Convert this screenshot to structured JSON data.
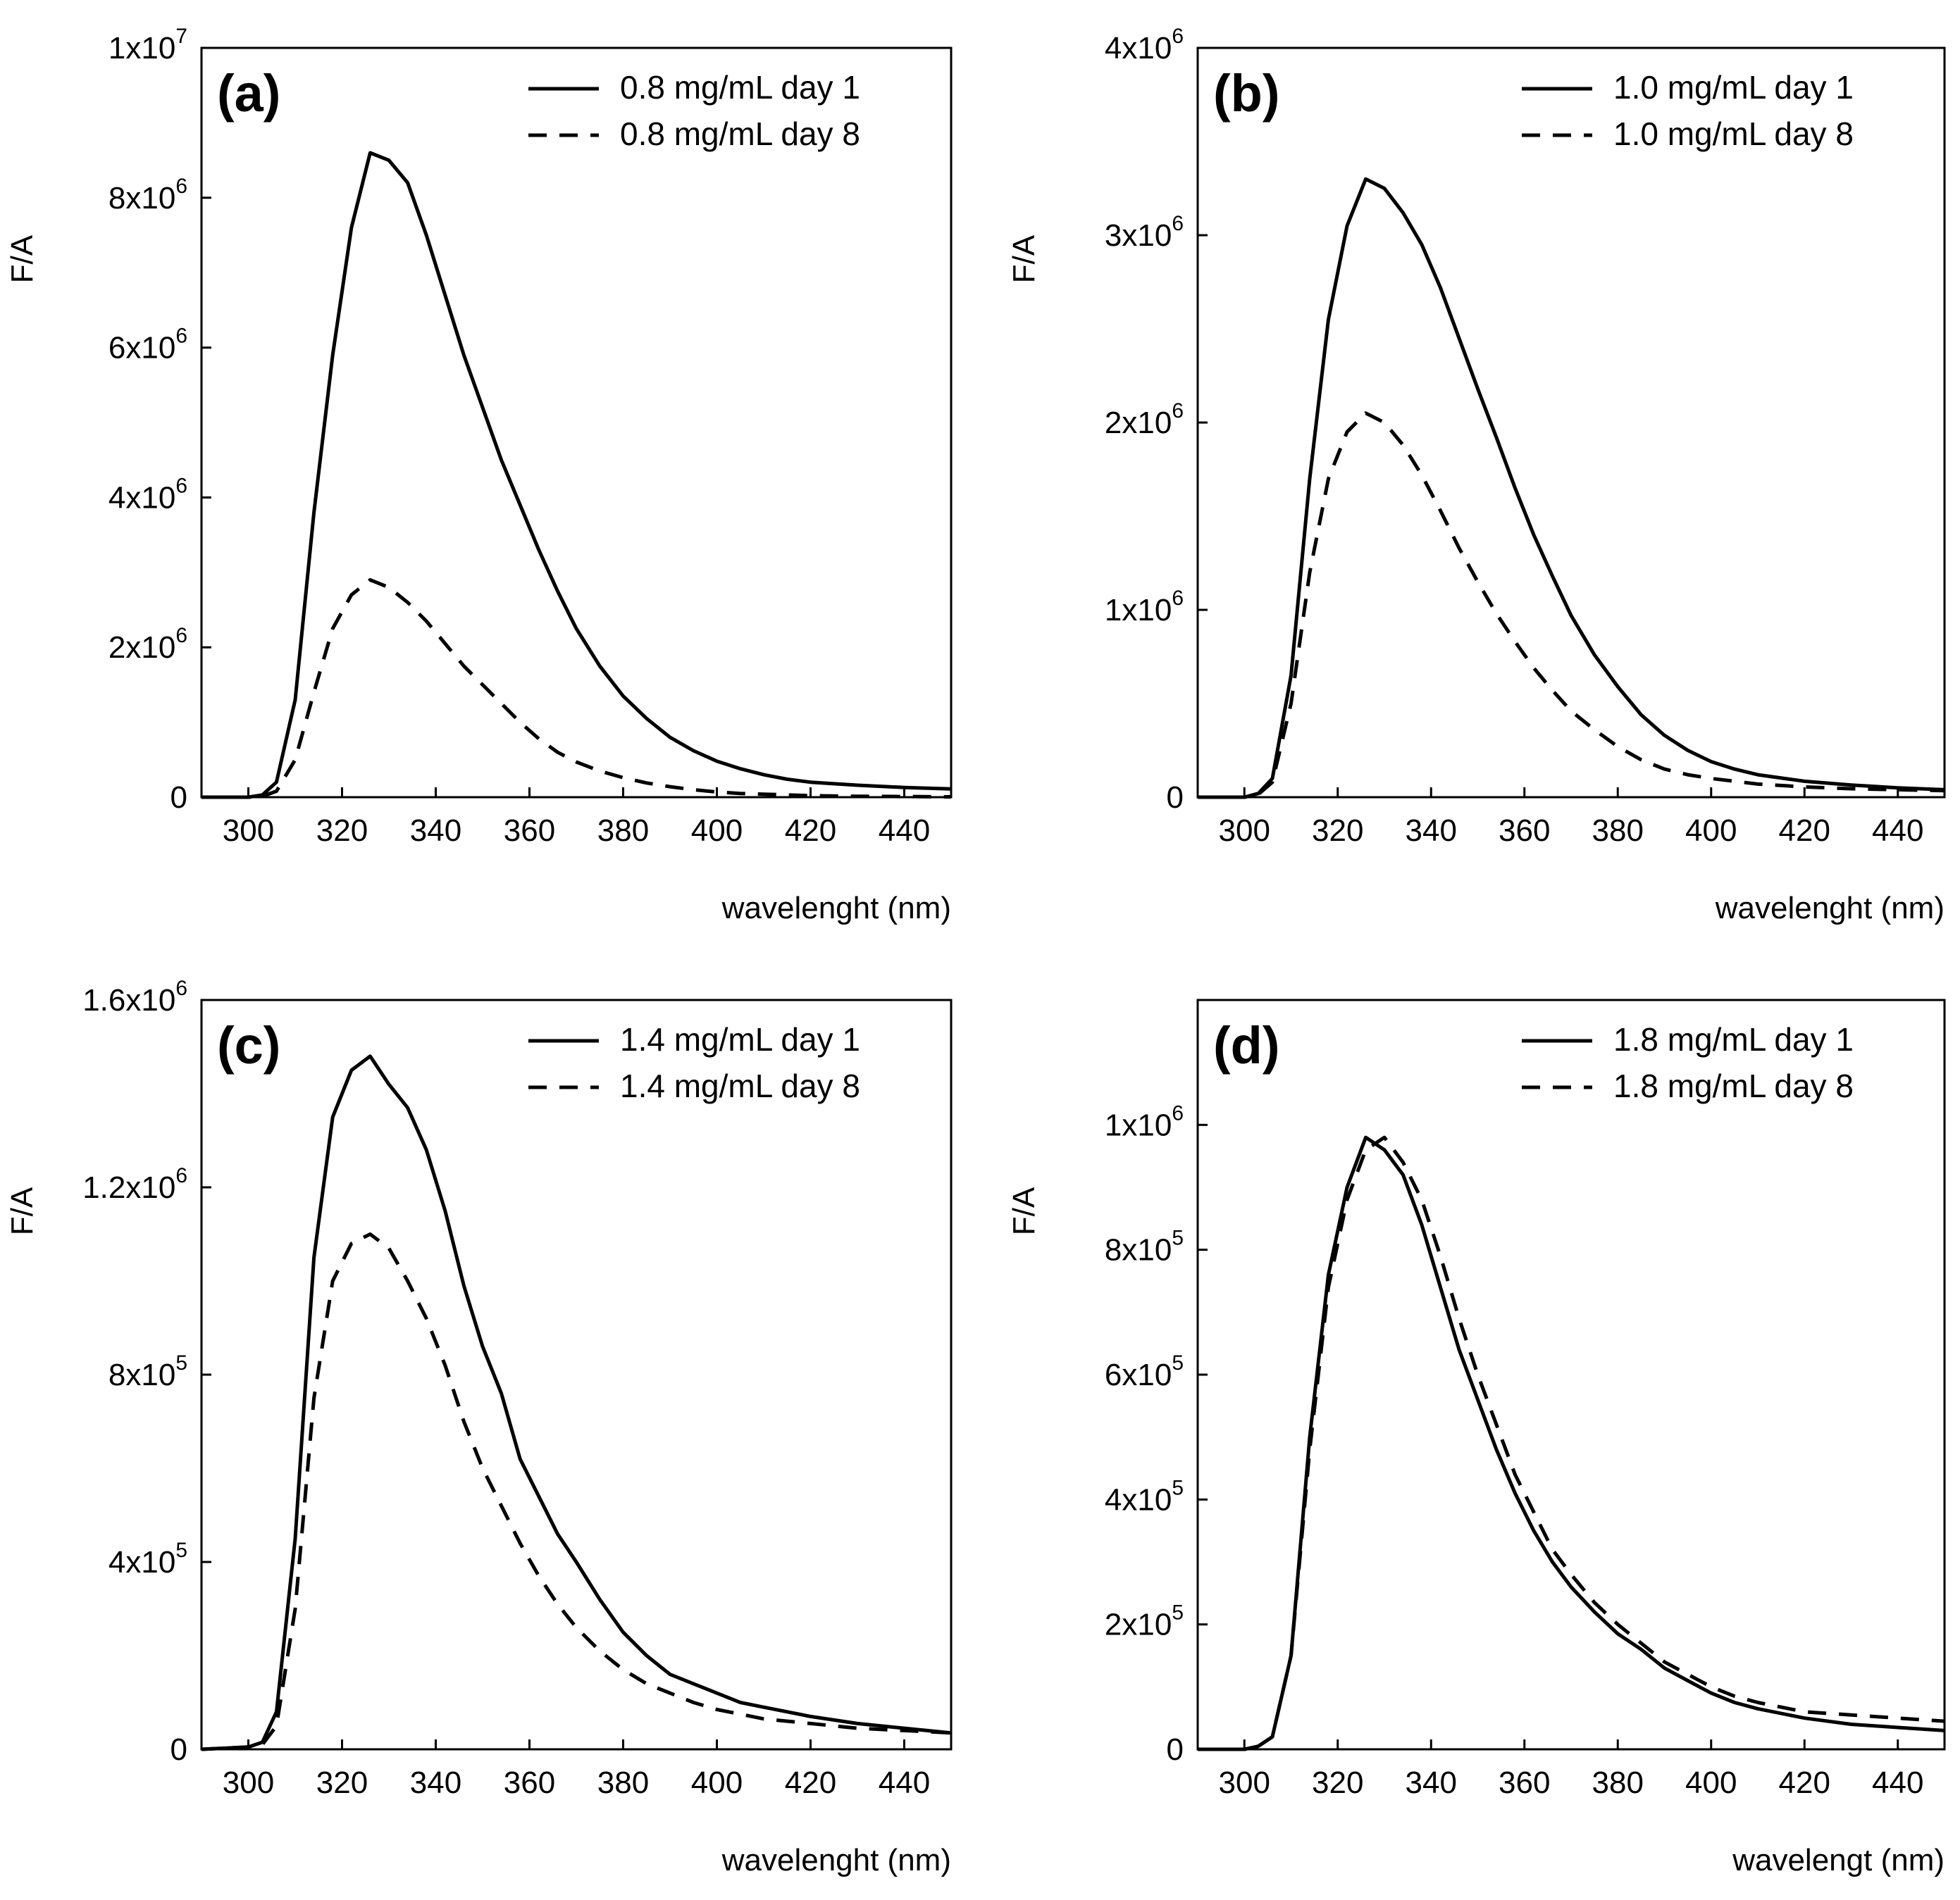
{
  "figure": {
    "title": ""
  },
  "chart_data": [
    {
      "type": "line",
      "panel_label": "(a)",
      "xlabel": "wavelenght (nm)",
      "ylabel": "F/A",
      "xlim": [
        290,
        450
      ],
      "ylim": [
        0,
        10000000
      ],
      "xticks": [
        300,
        320,
        340,
        360,
        380,
        400,
        420,
        440
      ],
      "xtick_labels": [
        "300",
        "320",
        "340",
        "360",
        "380",
        "400",
        "420",
        "440"
      ],
      "yticks": [
        0,
        2000000,
        4000000,
        6000000,
        8000000,
        10000000
      ],
      "ytick_labels": [
        {
          "mantissa": "0",
          "exponent": ""
        },
        {
          "mantissa": "2x10",
          "exponent": "6"
        },
        {
          "mantissa": "4x10",
          "exponent": "6"
        },
        {
          "mantissa": "6x10",
          "exponent": "6"
        },
        {
          "mantissa": "8x10",
          "exponent": "6"
        },
        {
          "mantissa": "1x10",
          "exponent": "7"
        }
      ],
      "legend_position": "top-right",
      "series": [
        {
          "name": "0.8 mg/mL day 1",
          "style": "solid",
          "x": [
            290,
            300,
            303,
            306,
            310,
            314,
            318,
            322,
            326,
            330,
            334,
            338,
            342,
            346,
            350,
            354,
            358,
            362,
            366,
            370,
            375,
            380,
            385,
            390,
            395,
            400,
            405,
            410,
            415,
            420,
            430,
            440,
            450
          ],
          "y": [
            0,
            0,
            30000,
            200000,
            1300000,
            3800000,
            5900000,
            7600000,
            8600000,
            8500000,
            8200000,
            7500000,
            6700000,
            5900000,
            5200000,
            4500000,
            3900000,
            3300000,
            2750000,
            2250000,
            1750000,
            1350000,
            1050000,
            800000,
            620000,
            480000,
            380000,
            300000,
            240000,
            200000,
            160000,
            130000,
            110000
          ]
        },
        {
          "name": "0.8 mg/mL day 8",
          "style": "dashed",
          "x": [
            290,
            300,
            303,
            306,
            310,
            314,
            318,
            322,
            326,
            330,
            334,
            338,
            342,
            346,
            350,
            354,
            358,
            362,
            366,
            370,
            375,
            380,
            385,
            390,
            395,
            400,
            405,
            410,
            420,
            430,
            440,
            450
          ],
          "y": [
            0,
            0,
            10000,
            80000,
            500000,
            1400000,
            2250000,
            2700000,
            2900000,
            2800000,
            2600000,
            2350000,
            2050000,
            1750000,
            1500000,
            1250000,
            1000000,
            780000,
            600000,
            470000,
            350000,
            260000,
            190000,
            140000,
            100000,
            70000,
            50000,
            40000,
            20000,
            12000,
            8000,
            5000
          ]
        }
      ]
    },
    {
      "type": "line",
      "panel_label": "(b)",
      "xlabel": "wavelenght (nm)",
      "ylabel": "F/A",
      "xlim": [
        290,
        450
      ],
      "ylim": [
        0,
        4000000
      ],
      "xticks": [
        300,
        320,
        340,
        360,
        380,
        400,
        420,
        440
      ],
      "xtick_labels": [
        "300",
        "320",
        "340",
        "360",
        "380",
        "400",
        "420",
        "440"
      ],
      "yticks": [
        0,
        1000000,
        2000000,
        3000000,
        4000000
      ],
      "ytick_labels": [
        {
          "mantissa": "0",
          "exponent": ""
        },
        {
          "mantissa": "1x10",
          "exponent": "6"
        },
        {
          "mantissa": "2x10",
          "exponent": "6"
        },
        {
          "mantissa": "3x10",
          "exponent": "6"
        },
        {
          "mantissa": "4x10",
          "exponent": "6"
        }
      ],
      "legend_position": "top-right",
      "series": [
        {
          "name": "1.0 mg/mL day 1",
          "style": "solid",
          "x": [
            290,
            300,
            303,
            306,
            310,
            314,
            318,
            322,
            326,
            330,
            334,
            338,
            342,
            346,
            350,
            354,
            358,
            362,
            366,
            370,
            375,
            380,
            385,
            390,
            395,
            400,
            405,
            410,
            420,
            430,
            440,
            450
          ],
          "y": [
            0,
            0,
            20000,
            100000,
            650000,
            1700000,
            2550000,
            3050000,
            3300000,
            3250000,
            3120000,
            2950000,
            2720000,
            2450000,
            2180000,
            1920000,
            1650000,
            1400000,
            1180000,
            970000,
            760000,
            590000,
            440000,
            330000,
            250000,
            190000,
            150000,
            120000,
            85000,
            65000,
            50000,
            40000
          ]
        },
        {
          "name": "1.0 mg/mL day 8",
          "style": "dashed",
          "x": [
            290,
            300,
            303,
            306,
            310,
            314,
            318,
            322,
            326,
            330,
            334,
            338,
            342,
            346,
            350,
            354,
            358,
            362,
            366,
            370,
            375,
            380,
            385,
            390,
            395,
            400,
            405,
            410,
            420,
            430,
            440,
            450
          ],
          "y": [
            0,
            0,
            15000,
            80000,
            500000,
            1200000,
            1700000,
            1950000,
            2050000,
            2000000,
            1880000,
            1720000,
            1530000,
            1330000,
            1150000,
            980000,
            830000,
            690000,
            570000,
            460000,
            360000,
            270000,
            200000,
            150000,
            120000,
            100000,
            85000,
            70000,
            55000,
            45000,
            40000,
            35000
          ]
        }
      ]
    },
    {
      "type": "line",
      "panel_label": "(c)",
      "xlabel": "wavelenght (nm)",
      "ylabel": "F/A",
      "xlim": [
        290,
        450
      ],
      "ylim": [
        0,
        1600000
      ],
      "xticks": [
        300,
        320,
        340,
        360,
        380,
        400,
        420,
        440
      ],
      "xtick_labels": [
        "300",
        "320",
        "340",
        "360",
        "380",
        "400",
        "420",
        "440"
      ],
      "yticks": [
        0,
        400000,
        800000,
        1200000,
        1600000
      ],
      "ytick_labels": [
        {
          "mantissa": "0",
          "exponent": ""
        },
        {
          "mantissa": "4x10",
          "exponent": "5"
        },
        {
          "mantissa": "8x10",
          "exponent": "5"
        },
        {
          "mantissa": "1.2x10",
          "exponent": "6"
        },
        {
          "mantissa": "1.6x10",
          "exponent": "6"
        }
      ],
      "legend_position": "top-right",
      "series": [
        {
          "name": "1.4 mg/mL day 1",
          "style": "solid",
          "x": [
            290,
            300,
            303,
            306,
            310,
            314,
            318,
            322,
            326,
            330,
            334,
            338,
            342,
            346,
            350,
            354,
            358,
            362,
            366,
            370,
            375,
            380,
            385,
            390,
            395,
            400,
            405,
            410,
            420,
            430,
            440,
            450
          ],
          "y": [
            0,
            5000,
            15000,
            80000,
            450000,
            1050000,
            1350000,
            1450000,
            1480000,
            1420000,
            1370000,
            1280000,
            1150000,
            990000,
            860000,
            760000,
            620000,
            540000,
            460000,
            400000,
            320000,
            250000,
            200000,
            160000,
            140000,
            120000,
            100000,
            90000,
            70000,
            55000,
            45000,
            35000
          ]
        },
        {
          "name": "1.4 mg/mL day 8",
          "style": "dashed",
          "x": [
            290,
            300,
            303,
            306,
            310,
            314,
            318,
            322,
            326,
            330,
            334,
            338,
            342,
            346,
            350,
            354,
            358,
            362,
            366,
            370,
            375,
            380,
            385,
            390,
            395,
            400,
            405,
            410,
            420,
            430,
            440,
            450
          ],
          "y": [
            0,
            5000,
            10000,
            50000,
            300000,
            750000,
            1000000,
            1080000,
            1100000,
            1070000,
            1000000,
            920000,
            820000,
            700000,
            600000,
            520000,
            440000,
            370000,
            310000,
            260000,
            210000,
            170000,
            140000,
            120000,
            100000,
            85000,
            75000,
            65000,
            55000,
            45000,
            40000,
            35000
          ]
        }
      ]
    },
    {
      "type": "line",
      "panel_label": "(d)",
      "xlabel": "wavelengt (nm)",
      "ylabel": "F/A",
      "xlim": [
        290,
        450
      ],
      "ylim": [
        0,
        1200000
      ],
      "xticks": [
        300,
        320,
        340,
        360,
        380,
        400,
        420,
        440
      ],
      "xtick_labels": [
        "300",
        "320",
        "340",
        "360",
        "380",
        "400",
        "420",
        "440"
      ],
      "yticks": [
        0,
        200000,
        400000,
        600000,
        800000,
        1000000
      ],
      "ytick_labels": [
        {
          "mantissa": "0",
          "exponent": ""
        },
        {
          "mantissa": "2x10",
          "exponent": "5"
        },
        {
          "mantissa": "4x10",
          "exponent": "5"
        },
        {
          "mantissa": "6x10",
          "exponent": "5"
        },
        {
          "mantissa": "8x10",
          "exponent": "5"
        },
        {
          "mantissa": "1x10",
          "exponent": "6"
        }
      ],
      "legend_position": "top-right",
      "series": [
        {
          "name": "1.8 mg/mL day 1",
          "style": "solid",
          "x": [
            290,
            300,
            303,
            306,
            310,
            314,
            318,
            322,
            326,
            330,
            334,
            338,
            342,
            346,
            350,
            354,
            358,
            362,
            366,
            370,
            375,
            380,
            385,
            390,
            395,
            400,
            405,
            410,
            420,
            430,
            440,
            450
          ],
          "y": [
            0,
            0,
            5000,
            20000,
            150000,
            500000,
            760000,
            900000,
            980000,
            960000,
            920000,
            840000,
            740000,
            640000,
            560000,
            480000,
            410000,
            350000,
            300000,
            260000,
            220000,
            185000,
            160000,
            130000,
            110000,
            90000,
            75000,
            65000,
            50000,
            40000,
            35000,
            30000
          ]
        },
        {
          "name": "1.8 mg/mL day 8",
          "style": "dashed",
          "x": [
            290,
            300,
            303,
            306,
            310,
            314,
            318,
            322,
            326,
            330,
            334,
            338,
            342,
            346,
            350,
            354,
            358,
            362,
            366,
            370,
            375,
            380,
            385,
            390,
            395,
            400,
            405,
            410,
            420,
            430,
            440,
            450
          ],
          "y": [
            0,
            0,
            5000,
            20000,
            150000,
            480000,
            740000,
            880000,
            960000,
            980000,
            940000,
            880000,
            790000,
            690000,
            600000,
            520000,
            440000,
            380000,
            320000,
            280000,
            235000,
            200000,
            170000,
            140000,
            120000,
            100000,
            85000,
            75000,
            60000,
            55000,
            50000,
            45000
          ]
        }
      ]
    }
  ]
}
